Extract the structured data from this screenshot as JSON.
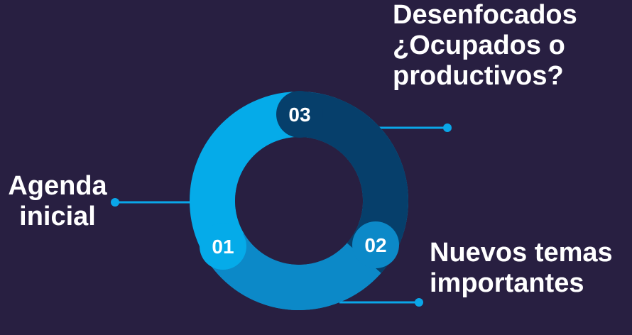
{
  "diagram": {
    "segments": [
      {
        "number": "01",
        "label_lines": [
          "Agenda",
          "inicial"
        ],
        "color": "#05abe9"
      },
      {
        "number": "02",
        "label_lines": [
          "Nuevos temas",
          "importantes"
        ],
        "color": "#0c89c8"
      },
      {
        "number": "03",
        "label_lines": [
          "Desenfocados",
          "¿Ocupados o",
          "productivos?"
        ],
        "color": "#063f6b"
      }
    ],
    "connector_color": "#0aa6e8",
    "text_color": "#ffffff",
    "background": "#281f41"
  }
}
